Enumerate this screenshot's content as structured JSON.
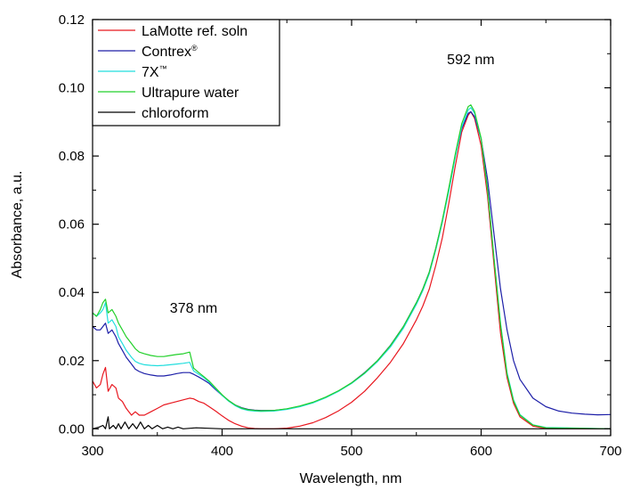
{
  "chart_data": {
    "type": "line",
    "title": "",
    "xlabel": "Wavelength, nm",
    "ylabel": "Absorbance, a.u.",
    "xlim": [
      300,
      700
    ],
    "ylim": [
      -0.002,
      0.12
    ],
    "x_ticks": [
      {
        "value": 300,
        "label": "300"
      },
      {
        "value": 400,
        "label": "400"
      },
      {
        "value": 500,
        "label": "500"
      },
      {
        "value": 600,
        "label": "600"
      },
      {
        "value": 700,
        "label": "700"
      }
    ],
    "y_ticks": [
      {
        "value": 0.0,
        "label": "0.00"
      },
      {
        "value": 0.02,
        "label": "0.02"
      },
      {
        "value": 0.04,
        "label": "0.04"
      },
      {
        "value": 0.06,
        "label": "0.06"
      },
      {
        "value": 0.08,
        "label": "0.08"
      },
      {
        "value": 0.1,
        "label": "0.10"
      },
      {
        "value": 0.12,
        "label": "0.12"
      }
    ],
    "grid": false,
    "legend_position": "top-left",
    "annotations": [
      {
        "text": "592 nm",
        "x": 592,
        "y": 0.107
      },
      {
        "text": "378 nm",
        "x": 378,
        "y": 0.034
      }
    ],
    "series": [
      {
        "name": "LaMotte ref. soln",
        "legend_sup": "",
        "color": "#e8171f",
        "points": [
          [
            300,
            0.014
          ],
          [
            303,
            0.012
          ],
          [
            306,
            0.013
          ],
          [
            308,
            0.016
          ],
          [
            310,
            0.018
          ],
          [
            312,
            0.011
          ],
          [
            315,
            0.013
          ],
          [
            318,
            0.012
          ],
          [
            320,
            0.009
          ],
          [
            323,
            0.008
          ],
          [
            326,
            0.006
          ],
          [
            330,
            0.004
          ],
          [
            333,
            0.005
          ],
          [
            336,
            0.004
          ],
          [
            340,
            0.004
          ],
          [
            345,
            0.005
          ],
          [
            350,
            0.006
          ],
          [
            355,
            0.007
          ],
          [
            360,
            0.0075
          ],
          [
            365,
            0.008
          ],
          [
            370,
            0.0085
          ],
          [
            375,
            0.009
          ],
          [
            378,
            0.0088
          ],
          [
            382,
            0.008
          ],
          [
            386,
            0.0075
          ],
          [
            390,
            0.0065
          ],
          [
            395,
            0.0052
          ],
          [
            400,
            0.0038
          ],
          [
            405,
            0.0025
          ],
          [
            410,
            0.0015
          ],
          [
            415,
            0.0008
          ],
          [
            420,
            0.0003
          ],
          [
            425,
            0.0001
          ],
          [
            430,
            0.0
          ],
          [
            440,
            0.0
          ],
          [
            450,
            0.0002
          ],
          [
            460,
            0.0008
          ],
          [
            470,
            0.0018
          ],
          [
            480,
            0.0033
          ],
          [
            490,
            0.0053
          ],
          [
            500,
            0.0078
          ],
          [
            510,
            0.011
          ],
          [
            520,
            0.015
          ],
          [
            530,
            0.0195
          ],
          [
            540,
            0.025
          ],
          [
            550,
            0.032
          ],
          [
            555,
            0.036
          ],
          [
            560,
            0.041
          ],
          [
            565,
            0.048
          ],
          [
            570,
            0.056
          ],
          [
            575,
            0.066
          ],
          [
            580,
            0.077
          ],
          [
            585,
            0.087
          ],
          [
            590,
            0.092
          ],
          [
            592,
            0.093
          ],
          [
            595,
            0.091
          ],
          [
            600,
            0.083
          ],
          [
            605,
            0.068
          ],
          [
            610,
            0.048
          ],
          [
            615,
            0.028
          ],
          [
            620,
            0.015
          ],
          [
            625,
            0.0075
          ],
          [
            630,
            0.0035
          ],
          [
            640,
            0.0008
          ],
          [
            650,
            0.0001
          ],
          [
            700,
            0.0
          ]
        ]
      },
      {
        "name": "Contrex",
        "legend_sup": "®",
        "color": "#1d1fa8",
        "points": [
          [
            300,
            0.03
          ],
          [
            303,
            0.029
          ],
          [
            306,
            0.029
          ],
          [
            308,
            0.03
          ],
          [
            310,
            0.031
          ],
          [
            312,
            0.028
          ],
          [
            315,
            0.029
          ],
          [
            318,
            0.027
          ],
          [
            320,
            0.025
          ],
          [
            323,
            0.023
          ],
          [
            326,
            0.021
          ],
          [
            330,
            0.019
          ],
          [
            333,
            0.0175
          ],
          [
            336,
            0.0168
          ],
          [
            340,
            0.0162
          ],
          [
            345,
            0.0158
          ],
          [
            350,
            0.0155
          ],
          [
            355,
            0.0155
          ],
          [
            360,
            0.0158
          ],
          [
            365,
            0.0162
          ],
          [
            370,
            0.0165
          ],
          [
            375,
            0.0165
          ],
          [
            378,
            0.016
          ],
          [
            382,
            0.0152
          ],
          [
            386,
            0.0143
          ],
          [
            390,
            0.0133
          ],
          [
            395,
            0.0115
          ],
          [
            400,
            0.0098
          ],
          [
            405,
            0.0083
          ],
          [
            410,
            0.007
          ],
          [
            415,
            0.0062
          ],
          [
            420,
            0.0057
          ],
          [
            425,
            0.0055
          ],
          [
            430,
            0.0054
          ],
          [
            440,
            0.0054
          ],
          [
            450,
            0.0058
          ],
          [
            460,
            0.0066
          ],
          [
            470,
            0.0077
          ],
          [
            480,
            0.0092
          ],
          [
            490,
            0.0111
          ],
          [
            500,
            0.0135
          ],
          [
            510,
            0.0165
          ],
          [
            520,
            0.02
          ],
          [
            530,
            0.0245
          ],
          [
            540,
            0.03
          ],
          [
            550,
            0.037
          ],
          [
            555,
            0.041
          ],
          [
            560,
            0.046
          ],
          [
            565,
            0.053
          ],
          [
            570,
            0.061
          ],
          [
            575,
            0.07
          ],
          [
            580,
            0.08
          ],
          [
            585,
            0.088
          ],
          [
            590,
            0.0925
          ],
          [
            592,
            0.093
          ],
          [
            595,
            0.0915
          ],
          [
            600,
            0.085
          ],
          [
            605,
            0.073
          ],
          [
            610,
            0.057
          ],
          [
            615,
            0.041
          ],
          [
            620,
            0.029
          ],
          [
            625,
            0.02
          ],
          [
            630,
            0.0145
          ],
          [
            640,
            0.009
          ],
          [
            650,
            0.0065
          ],
          [
            660,
            0.0052
          ],
          [
            670,
            0.0046
          ],
          [
            680,
            0.0043
          ],
          [
            690,
            0.0041
          ],
          [
            700,
            0.0042
          ]
        ]
      },
      {
        "name": "7X",
        "legend_sup": "™",
        "color": "#22dede",
        "points": [
          [
            300,
            0.034
          ],
          [
            303,
            0.033
          ],
          [
            306,
            0.034
          ],
          [
            308,
            0.035
          ],
          [
            310,
            0.037
          ],
          [
            312,
            0.031
          ],
          [
            315,
            0.032
          ],
          [
            318,
            0.03
          ],
          [
            320,
            0.027
          ],
          [
            323,
            0.025
          ],
          [
            326,
            0.023
          ],
          [
            330,
            0.021
          ],
          [
            333,
            0.0198
          ],
          [
            336,
            0.0192
          ],
          [
            340,
            0.0188
          ],
          [
            345,
            0.0186
          ],
          [
            350,
            0.0185
          ],
          [
            355,
            0.0186
          ],
          [
            360,
            0.0188
          ],
          [
            365,
            0.019
          ],
          [
            370,
            0.0192
          ],
          [
            375,
            0.0195
          ],
          [
            378,
            0.017
          ],
          [
            382,
            0.016
          ],
          [
            386,
            0.015
          ],
          [
            390,
            0.0137
          ],
          [
            395,
            0.0118
          ],
          [
            400,
            0.0098
          ],
          [
            405,
            0.0081
          ],
          [
            410,
            0.0068
          ],
          [
            415,
            0.0059
          ],
          [
            420,
            0.0054
          ],
          [
            425,
            0.0052
          ],
          [
            430,
            0.0051
          ],
          [
            440,
            0.0052
          ],
          [
            450,
            0.0057
          ],
          [
            460,
            0.0065
          ],
          [
            470,
            0.0076
          ],
          [
            480,
            0.0091
          ],
          [
            490,
            0.011
          ],
          [
            500,
            0.0133
          ],
          [
            510,
            0.0162
          ],
          [
            520,
            0.0197
          ],
          [
            530,
            0.024
          ],
          [
            540,
            0.0295
          ],
          [
            550,
            0.0365
          ],
          [
            555,
            0.0405
          ],
          [
            560,
            0.0455
          ],
          [
            565,
            0.0525
          ],
          [
            570,
            0.0605
          ],
          [
            575,
            0.0695
          ],
          [
            580,
            0.0795
          ],
          [
            585,
            0.0885
          ],
          [
            590,
            0.0935
          ],
          [
            592,
            0.0942
          ],
          [
            595,
            0.0925
          ],
          [
            600,
            0.085
          ],
          [
            605,
            0.07
          ],
          [
            610,
            0.05
          ],
          [
            615,
            0.031
          ],
          [
            620,
            0.0165
          ],
          [
            625,
            0.0085
          ],
          [
            630,
            0.0042
          ],
          [
            640,
            0.0012
          ],
          [
            650,
            0.0004
          ],
          [
            700,
            0.0
          ]
        ]
      },
      {
        "name": "Ultrapure water",
        "legend_sup": "",
        "color": "#22d02a",
        "points": [
          [
            300,
            0.034
          ],
          [
            303,
            0.033
          ],
          [
            306,
            0.035
          ],
          [
            308,
            0.037
          ],
          [
            310,
            0.038
          ],
          [
            312,
            0.034
          ],
          [
            315,
            0.035
          ],
          [
            318,
            0.033
          ],
          [
            320,
            0.031
          ],
          [
            323,
            0.029
          ],
          [
            326,
            0.027
          ],
          [
            330,
            0.025
          ],
          [
            333,
            0.0235
          ],
          [
            336,
            0.0225
          ],
          [
            340,
            0.022
          ],
          [
            345,
            0.0215
          ],
          [
            350,
            0.0212
          ],
          [
            355,
            0.0212
          ],
          [
            360,
            0.0215
          ],
          [
            365,
            0.0218
          ],
          [
            370,
            0.022
          ],
          [
            375,
            0.0225
          ],
          [
            378,
            0.0178
          ],
          [
            382,
            0.0165
          ],
          [
            386,
            0.0153
          ],
          [
            390,
            0.014
          ],
          [
            395,
            0.012
          ],
          [
            400,
            0.01
          ],
          [
            405,
            0.0083
          ],
          [
            410,
            0.007
          ],
          [
            415,
            0.0061
          ],
          [
            420,
            0.0056
          ],
          [
            425,
            0.0054
          ],
          [
            430,
            0.0053
          ],
          [
            440,
            0.0054
          ],
          [
            450,
            0.0059
          ],
          [
            460,
            0.0067
          ],
          [
            470,
            0.0078
          ],
          [
            480,
            0.0093
          ],
          [
            490,
            0.0112
          ],
          [
            500,
            0.0135
          ],
          [
            510,
            0.0164
          ],
          [
            520,
            0.02
          ],
          [
            530,
            0.0244
          ],
          [
            540,
            0.03
          ],
          [
            550,
            0.037
          ],
          [
            555,
            0.041
          ],
          [
            560,
            0.046
          ],
          [
            565,
            0.053
          ],
          [
            570,
            0.0612
          ],
          [
            575,
            0.0705
          ],
          [
            580,
            0.0805
          ],
          [
            585,
            0.0895
          ],
          [
            590,
            0.0945
          ],
          [
            592,
            0.095
          ],
          [
            595,
            0.093
          ],
          [
            600,
            0.0852
          ],
          [
            605,
            0.07
          ],
          [
            610,
            0.0498
          ],
          [
            615,
            0.0305
          ],
          [
            620,
            0.016
          ],
          [
            625,
            0.0082
          ],
          [
            630,
            0.004
          ],
          [
            640,
            0.0011
          ],
          [
            650,
            0.0003
          ],
          [
            700,
            0.0
          ]
        ]
      },
      {
        "name": "chloroform",
        "legend_sup": "",
        "color": "#000000",
        "points": [
          [
            300,
            0.0
          ],
          [
            305,
            0.0005
          ],
          [
            308,
            0.001
          ],
          [
            310,
            0.0
          ],
          [
            312,
            0.0035
          ],
          [
            313,
            0.0
          ],
          [
            316,
            0.001
          ],
          [
            318,
            0.0
          ],
          [
            320,
            0.0015
          ],
          [
            322,
            0.0
          ],
          [
            325,
            0.002
          ],
          [
            328,
            0.0
          ],
          [
            331,
            0.0015
          ],
          [
            334,
            0.0
          ],
          [
            337,
            0.002
          ],
          [
            340,
            0.0
          ],
          [
            343,
            0.001
          ],
          [
            346,
            0.0
          ],
          [
            350,
            0.001
          ],
          [
            354,
            0.0
          ],
          [
            358,
            0.0005
          ],
          [
            362,
            0.0
          ],
          [
            366,
            0.0005
          ],
          [
            370,
            0.0
          ],
          [
            380,
            0.0003
          ],
          [
            400,
            0.0
          ],
          [
            500,
            0.0
          ],
          [
            600,
            0.0
          ],
          [
            700,
            0.0
          ]
        ]
      }
    ]
  }
}
